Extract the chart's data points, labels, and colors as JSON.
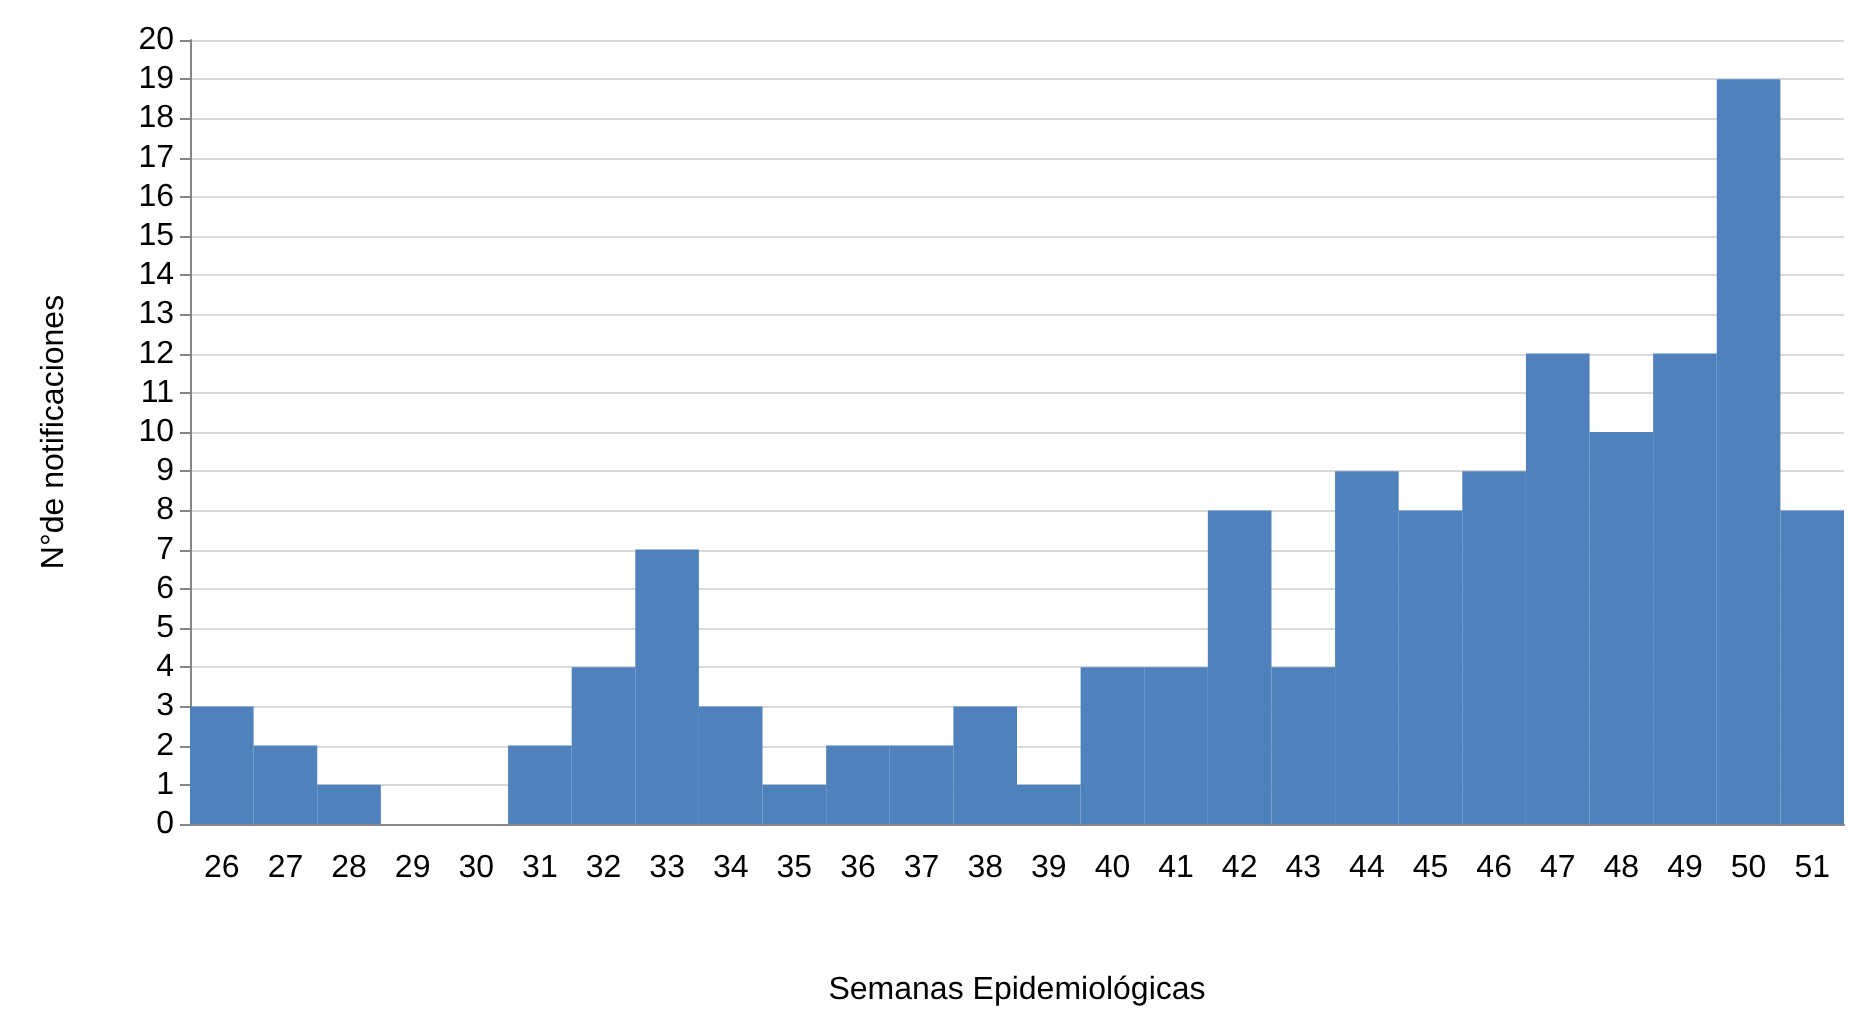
{
  "chart_data": {
    "type": "bar",
    "xlabel": "Semanas Epidemiológicas",
    "ylabel": "N°de notificaciones",
    "categories": [
      "26",
      "27",
      "28",
      "29",
      "30",
      "31",
      "32",
      "33",
      "34",
      "35",
      "36",
      "37",
      "38",
      "39",
      "40",
      "41",
      "42",
      "43",
      "44",
      "45",
      "46",
      "47",
      "48",
      "49",
      "50",
      "51"
    ],
    "values": [
      3,
      2,
      1,
      0,
      0,
      2,
      4,
      7,
      3,
      1,
      2,
      2,
      3,
      1,
      4,
      4,
      8,
      4,
      9,
      8,
      9,
      12,
      10,
      12,
      19,
      8
    ],
    "color": "#4f81bd",
    "ylim": [
      0,
      20
    ],
    "yticks": [
      0,
      1,
      2,
      3,
      4,
      5,
      6,
      7,
      8,
      9,
      10,
      11,
      12,
      13,
      14,
      15,
      16,
      17,
      18,
      19,
      20
    ],
    "grid": "y"
  }
}
